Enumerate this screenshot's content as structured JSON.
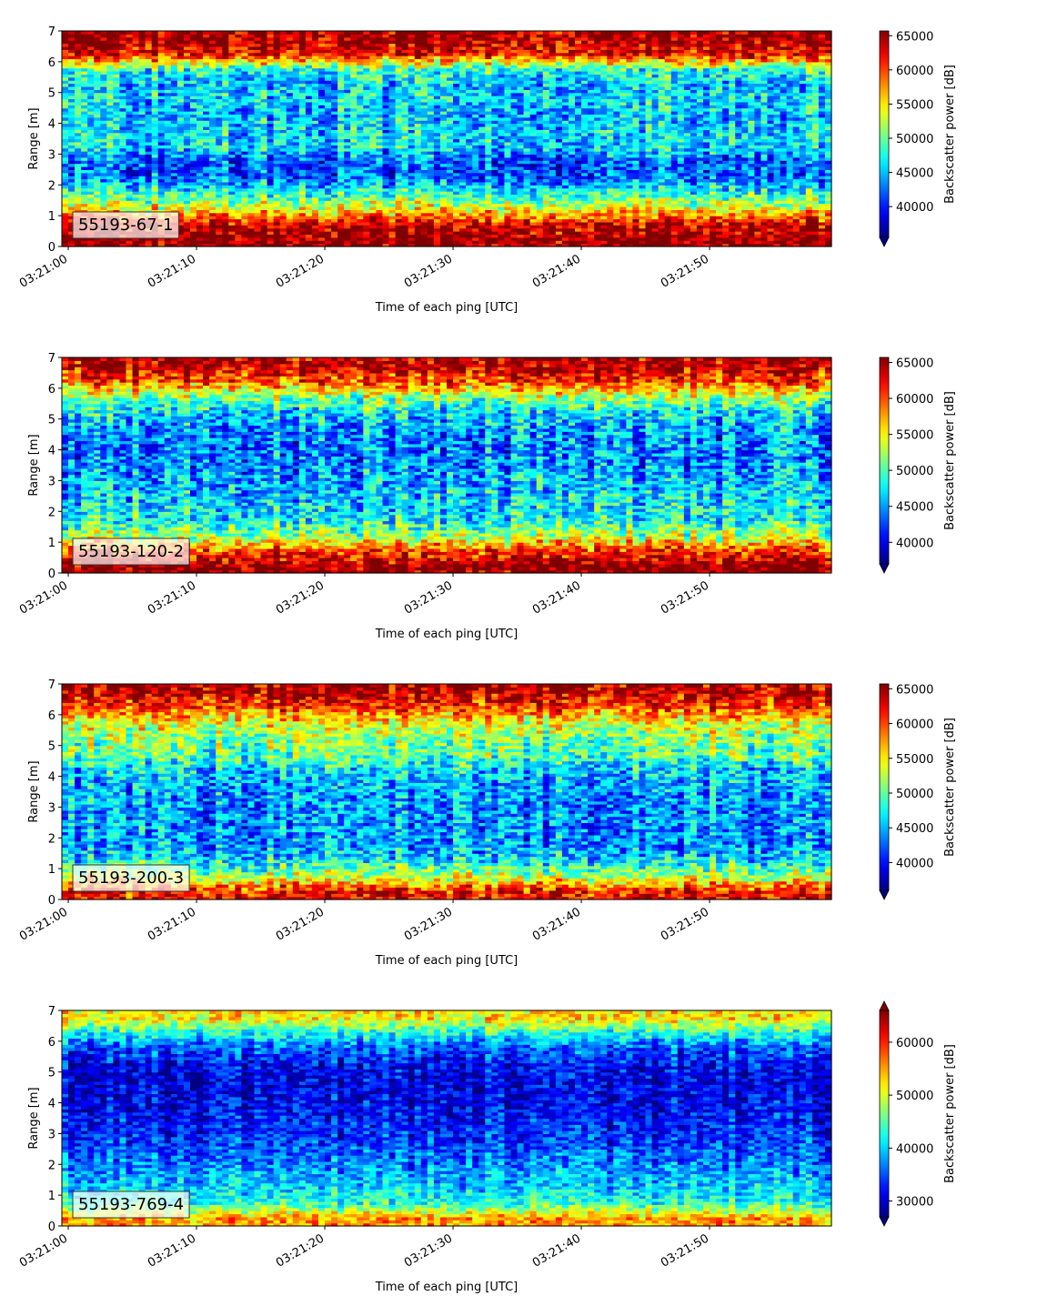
{
  "chart_data": [
    {
      "type": "heatmap",
      "label": "55193-67-1",
      "xlabel": "Time of each ping [UTC]",
      "ylabel": "Range [m]",
      "xlim": [
        "03:21:00",
        "03:21:59"
      ],
      "x_ticks": [
        "03:21:00",
        "03:21:10",
        "03:21:20",
        "03:21:30",
        "03:21:40",
        "03:21:50"
      ],
      "ylim": [
        0,
        7
      ],
      "y_ticks": [
        0,
        1,
        2,
        3,
        4,
        5,
        6,
        7
      ],
      "colorbar": {
        "label": "Backscatter power [dB]",
        "colormap": "jet",
        "range": [
          35500,
          65700
        ],
        "ticks": [
          40000,
          45000,
          50000,
          55000,
          60000,
          65000
        ],
        "extend": "min"
      },
      "range_profile": {
        "range_m": [
          0.25,
          0.75,
          1.25,
          1.75,
          2.25,
          2.75,
          3.25,
          3.75,
          4.25,
          4.75,
          5.25,
          5.75,
          6.25,
          6.75
        ],
        "mean_backscatter": [
          65500,
          63000,
          54000,
          48000,
          42000,
          42000,
          46000,
          46000,
          45000,
          46000,
          45000,
          48000,
          62000,
          65000
        ]
      }
    },
    {
      "type": "heatmap",
      "label": "55193-120-2",
      "xlabel": "Time of each ping [UTC]",
      "ylabel": "Range [m]",
      "xlim": [
        "03:21:00",
        "03:21:59"
      ],
      "x_ticks": [
        "03:21:00",
        "03:21:10",
        "03:21:20",
        "03:21:30",
        "03:21:40",
        "03:21:50"
      ],
      "ylim": [
        0,
        7
      ],
      "y_ticks": [
        0,
        1,
        2,
        3,
        4,
        5,
        6,
        7
      ],
      "colorbar": {
        "label": "Backscatter power [dB]",
        "colormap": "jet",
        "range": [
          37000,
          65700
        ],
        "ticks": [
          40000,
          45000,
          50000,
          55000,
          60000,
          65000
        ],
        "extend": "min"
      },
      "range_profile": {
        "range_m": [
          0.25,
          0.75,
          1.25,
          1.75,
          2.25,
          2.75,
          3.25,
          3.75,
          4.25,
          4.75,
          5.25,
          5.75,
          6.25,
          6.75
        ],
        "mean_backscatter": [
          65500,
          60000,
          52000,
          48000,
          47000,
          46000,
          45000,
          44000,
          44000,
          45000,
          47000,
          52000,
          60000,
          64000
        ]
      }
    },
    {
      "type": "heatmap",
      "label": "55193-200-3",
      "xlabel": "Time of each ping [UTC]",
      "ylabel": "Range [m]",
      "xlim": [
        "03:21:00",
        "03:21:59"
      ],
      "x_ticks": [
        "03:21:00",
        "03:21:10",
        "03:21:20",
        "03:21:30",
        "03:21:40",
        "03:21:50"
      ],
      "ylim": [
        0,
        7
      ],
      "y_ticks": [
        0,
        1,
        2,
        3,
        4,
        5,
        6,
        7
      ],
      "colorbar": {
        "label": "Backscatter power [dB]",
        "colormap": "jet",
        "range": [
          36000,
          65700
        ],
        "ticks": [
          40000,
          45000,
          50000,
          55000,
          60000,
          65000
        ],
        "extend": "min"
      },
      "range_profile": {
        "range_m": [
          0.25,
          0.75,
          1.25,
          1.75,
          2.25,
          2.75,
          3.25,
          3.75,
          4.25,
          4.75,
          5.25,
          5.75,
          6.25,
          6.75
        ],
        "mean_backscatter": [
          62000,
          53000,
          47000,
          44000,
          44000,
          44000,
          44000,
          45000,
          46000,
          50000,
          51000,
          54000,
          60000,
          64000
        ]
      }
    },
    {
      "type": "heatmap",
      "label": "55193-769-4",
      "xlabel": "Time of each ping [UTC]",
      "ylabel": "Range [m]",
      "xlim": [
        "03:21:00",
        "03:21:59"
      ],
      "x_ticks": [
        "03:21:00",
        "03:21:10",
        "03:21:20",
        "03:21:30",
        "03:21:40",
        "03:21:50"
      ],
      "ylim": [
        0,
        7
      ],
      "y_ticks": [
        0,
        1,
        2,
        3,
        4,
        5,
        6,
        7
      ],
      "colorbar": {
        "label": "Backscatter power [dB]",
        "colormap": "jet",
        "range": [
          27000,
          66000
        ],
        "ticks": [
          30000,
          40000,
          50000,
          60000
        ],
        "extend": "both"
      },
      "range_profile": {
        "range_m": [
          0.25,
          0.75,
          1.25,
          1.75,
          2.25,
          2.75,
          3.25,
          3.75,
          4.25,
          4.75,
          5.25,
          5.75,
          6.25,
          6.75
        ],
        "mean_backscatter": [
          55000,
          43000,
          40000,
          38000,
          36000,
          34000,
          33000,
          32000,
          31000,
          31000,
          32000,
          35000,
          42000,
          52000
        ]
      }
    }
  ]
}
